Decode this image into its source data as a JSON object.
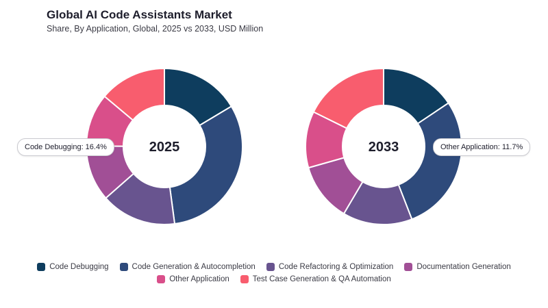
{
  "header": {
    "title": "Global AI Code Assistants Market",
    "subtitle": "Share, By Application, Global, 2025 vs 2033, USD Million"
  },
  "chart_data": {
    "type": "donut",
    "categories": [
      "Code Debugging",
      "Code Generation & Autocompletion",
      "Code Refactoring & Optimization",
      "Documentation Generation",
      "Other Application",
      "Test Case Generation & QA Automation"
    ],
    "colors": [
      "#0e3d5e",
      "#2e4a7b",
      "#68548f",
      "#a14f96",
      "#d94f8a",
      "#f85d6e"
    ],
    "charts": [
      {
        "label": "2025",
        "values": [
          16.4,
          31.5,
          15.6,
          11.6,
          11.0,
          13.9
        ],
        "callout": "Code Debugging: 16.4%"
      },
      {
        "label": "2033",
        "values": [
          15.6,
          28.5,
          14.4,
          12.1,
          11.7,
          17.7
        ],
        "callout": "Other Application: 11.7%"
      }
    ]
  },
  "legend": {
    "row1": [
      "Code Debugging",
      "Code Generation & Autocompletion",
      "Code Refactoring & Optimization",
      "Documentation Generation"
    ],
    "row2": [
      "Other Application",
      "Test Case Generation & QA Automation"
    ]
  }
}
